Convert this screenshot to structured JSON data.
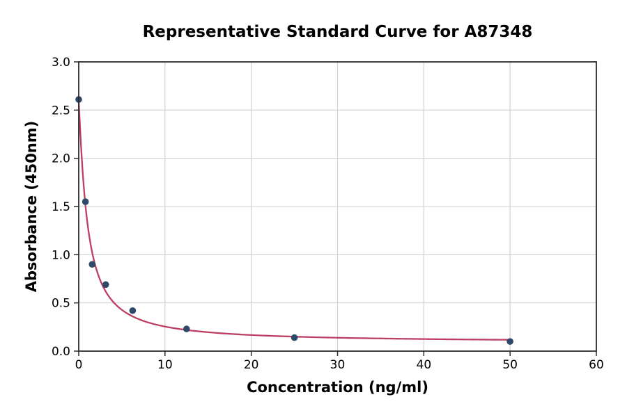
{
  "chart_data": {
    "type": "scatter",
    "title": "Representative Standard Curve for A87348",
    "xlabel": "Concentration (ng/ml)",
    "ylabel": "Absorbance (450nm)",
    "xlim": [
      0,
      60
    ],
    "ylim": [
      0,
      3
    ],
    "grid": true,
    "x_axis": {
      "label": "Concentration (ng/ml)",
      "tick_labels": [
        "0",
        "10",
        "20",
        "30",
        "40",
        "50",
        "60"
      ],
      "tick_values": [
        0,
        10,
        20,
        30,
        40,
        50,
        60
      ]
    },
    "y_axis": {
      "label": "Absorbance (450nm)",
      "tick_labels": [
        "0.0",
        "0.5",
        "1.0",
        "1.5",
        "2.0",
        "2.5",
        "3.0"
      ],
      "tick_values": [
        0,
        0.5,
        1,
        1.5,
        2,
        2.5,
        3
      ]
    },
    "points": [
      {
        "x": 0,
        "y": 2.61
      },
      {
        "x": 0.78,
        "y": 1.55
      },
      {
        "x": 1.56,
        "y": 0.9
      },
      {
        "x": 3.13,
        "y": 0.69
      },
      {
        "x": 6.25,
        "y": 0.42
      },
      {
        "x": 12.5,
        "y": 0.23
      },
      {
        "x": 25,
        "y": 0.14
      },
      {
        "x": 50,
        "y": 0.1
      }
    ],
    "fit_curve": {
      "model": "4PL",
      "a": 2.58,
      "b": 1.15,
      "c": 1.0,
      "d": 0.09,
      "x_start": 0,
      "x_end": 50
    },
    "colors": {
      "marker": "#2e4a68",
      "curve": "#bd3e63",
      "grid": "#cfcfcf",
      "spine": "#2a2a2a",
      "text": "#000000"
    }
  }
}
